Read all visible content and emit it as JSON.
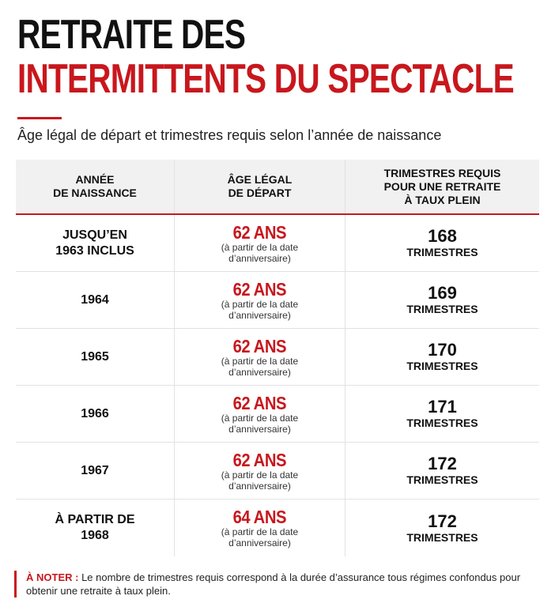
{
  "title": {
    "line1": "RETRAITE DES",
    "line2": "INTERMITTENTS DU SPECTACLE"
  },
  "subtitle": "Âge légal de départ et trimestres requis selon l’année de naissance",
  "colors": {
    "accent": "#c8171d",
    "text": "#111111",
    "header_bg": "#f1f1f1",
    "divider": "#e2e2e2"
  },
  "table": {
    "headers": [
      "ANNÉE\nDE NAISSANCE",
      "ÂGE LÉGAL\nDE DÉPART",
      "TRIMESTRES REQUIS\nPOUR UNE RETRAITE\nÀ TAUX PLEIN"
    ],
    "rows": [
      {
        "year": "JUSQU’EN\n1963 INCLUS",
        "age": "62 ANS",
        "age_note": "(à partir de la date\nd’anniversaire)",
        "quarters": "168",
        "quarters_label": "TRIMESTRES"
      },
      {
        "year": "1964",
        "age": "62 ANS",
        "age_note": "(à partir de la date\nd’anniversaire)",
        "quarters": "169",
        "quarters_label": "TRIMESTRES"
      },
      {
        "year": "1965",
        "age": "62 ANS",
        "age_note": "(à partir de la date\nd’anniversaire)",
        "quarters": "170",
        "quarters_label": "TRIMESTRES"
      },
      {
        "year": "1966",
        "age": "62 ANS",
        "age_note": "(à partir de la date\nd’anniversaire)",
        "quarters": "171",
        "quarters_label": "TRIMESTRES"
      },
      {
        "year": "1967",
        "age": "62 ANS",
        "age_note": "(à partir de la date\nd’anniversaire)",
        "quarters": "172",
        "quarters_label": "TRIMESTRES"
      },
      {
        "year": "À PARTIR DE\n1968",
        "age": "64 ANS",
        "age_note": "(à partir de la date\nd’anniversaire)",
        "quarters": "172",
        "quarters_label": "TRIMESTRES"
      }
    ]
  },
  "note": {
    "label": "À NOTER :",
    "text": "Le nombre de trimestres requis correspond à la durée d’assurance tous régimes confondus pour obtenir une retraite à taux plein."
  }
}
